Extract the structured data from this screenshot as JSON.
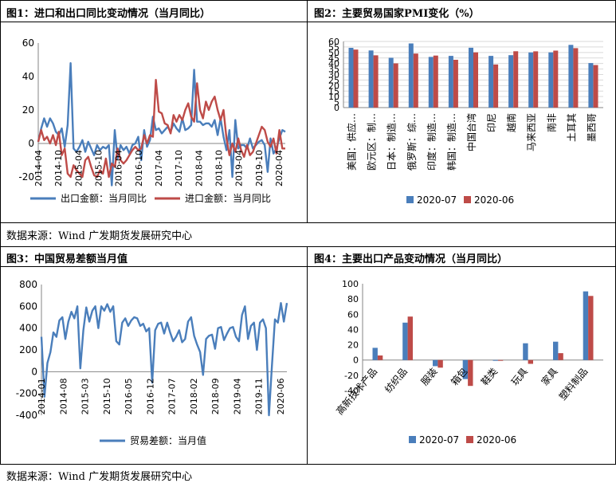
{
  "panels": {
    "p1": {
      "title": "图1：进口和出口同比变动情况（当月同比）"
    },
    "p2": {
      "title": "图2：主要贸易国家PMI变化（%）"
    },
    "p3": {
      "title": "图3：中国贸易差额当月值"
    },
    "p4": {
      "title": "图4：主要出口产品变动情况（当月同比）"
    }
  },
  "sources": {
    "top": "数据来源：Wind 广发期货发展研究中心",
    "bottom": "数据来源：Wind 广发期货发展研究中心"
  },
  "colors": {
    "blue": "#4a7ebb",
    "red": "#be4b48",
    "axis": "#868686",
    "grid": "#d9d9d9"
  },
  "chart_data": [
    {
      "id": "chart1",
      "type": "line",
      "title": "",
      "xlabel": "",
      "ylabel": "",
      "ylim": [
        -20,
        60
      ],
      "yticks": [
        -20,
        0,
        20,
        40,
        60
      ],
      "x_tick_labels": [
        "2014-04",
        "2014-10",
        "2015-04",
        "2015-10",
        "2016-04",
        "2016-10",
        "2017-04",
        "2017-10",
        "2018-04",
        "2018-10",
        "2019-04",
        "2019-10",
        "2020-04"
      ],
      "grid": false,
      "legend": "bottom",
      "series": [
        {
          "name": "出口金额：当月同比",
          "color": "blue",
          "values": [
            1,
            9,
            15,
            10,
            15,
            12,
            7,
            5,
            9,
            -2,
            11,
            48,
            -3,
            -5,
            -2,
            2,
            -5,
            1,
            -3,
            -7,
            -1,
            -4,
            -2,
            -3,
            -1,
            -25,
            8,
            -9,
            -1,
            -4,
            -2,
            -6,
            -1,
            0,
            4,
            -10,
            8,
            -2,
            2,
            16,
            8,
            9,
            6,
            8,
            10,
            7,
            12,
            9,
            7,
            15,
            8,
            9,
            11,
            44,
            13,
            13,
            11,
            12,
            12,
            10,
            14,
            5,
            15,
            4,
            -4,
            8,
            -20,
            14,
            -3,
            -1,
            -1,
            -3,
            3,
            -3,
            -1,
            1,
            2,
            -1,
            -17,
            3,
            -6,
            -3,
            3,
            8,
            7
          ]
        },
        {
          "name": "进口金额：当月同比",
          "color": "red",
          "values": [
            1,
            8,
            2,
            4,
            0,
            5,
            -1,
            7,
            -7,
            -3,
            -18,
            -20,
            -13,
            -16,
            -18,
            -20,
            -10,
            -8,
            -14,
            -19,
            -20,
            -16,
            -18,
            -9,
            -20,
            -12,
            -14,
            -3,
            -10,
            -12,
            -10,
            -7,
            -4,
            -2,
            -4,
            -3,
            5,
            0,
            5,
            4,
            38,
            19,
            18,
            12,
            11,
            6,
            17,
            13,
            17,
            14,
            20,
            24,
            16,
            13,
            36,
            20,
            15,
            25,
            20,
            25,
            28,
            20,
            14,
            20,
            3,
            -7,
            0,
            -5,
            3,
            -4,
            -8,
            -1,
            -7,
            -5,
            0,
            5,
            10,
            8,
            1,
            -2,
            3,
            -6,
            8,
            -3,
            -3
          ]
        }
      ]
    },
    {
      "id": "chart2",
      "type": "bar",
      "title": "",
      "xlabel": "",
      "ylabel": "",
      "ylim": [
        0,
        60
      ],
      "yticks": [
        0,
        5,
        10,
        15,
        20,
        25,
        30,
        35,
        40,
        45,
        50,
        55,
        60
      ],
      "categories": [
        "美国：供应…",
        "欧元区：制…",
        "日本：制造…",
        "俄罗斯：综…",
        "印度：制造…",
        "韩国：制造…",
        "中国台湾",
        "印尼",
        "越南",
        "马来西亚",
        "南非",
        "土耳其",
        "墨西哥"
      ],
      "legend": "bottom",
      "series": [
        {
          "name": "2020-07",
          "color": "blue",
          "values": [
            54.2,
            51.8,
            45.2,
            58.2,
            46.0,
            46.9,
            54.3,
            46.9,
            47.6,
            50.0,
            50.1,
            56.9,
            40.4
          ]
        },
        {
          "name": "2020-06",
          "color": "red",
          "values": [
            52.6,
            47.4,
            40.1,
            49.0,
            47.2,
            43.4,
            50.1,
            39.1,
            51.1,
            51.0,
            51.7,
            53.9,
            38.6
          ]
        }
      ]
    },
    {
      "id": "chart3",
      "type": "line",
      "title": "",
      "xlabel": "",
      "ylabel": "",
      "ylim": [
        -400,
        800
      ],
      "yticks": [
        -400,
        -200,
        0,
        200,
        400,
        600,
        800
      ],
      "x_tick_labels": [
        "2014-01",
        "2014-08",
        "2015-03",
        "2015-10",
        "2016-05",
        "2016-12",
        "2017-07",
        "2018-02",
        "2018-09",
        "2019-04",
        "2019-11",
        "2020-06"
      ],
      "grid": false,
      "legend": "bottom",
      "series": [
        {
          "name": "贸易差额：当月值",
          "color": "blue",
          "values": [
            320,
            -230,
            80,
            180,
            360,
            320,
            470,
            500,
            300,
            460,
            550,
            490,
            600,
            30,
            380,
            590,
            460,
            560,
            600,
            400,
            600,
            560,
            620,
            550,
            600,
            280,
            250,
            450,
            490,
            420,
            470,
            500,
            490,
            420,
            440,
            370,
            400,
            -100,
            380,
            440,
            450,
            350,
            450,
            360,
            280,
            320,
            380,
            270,
            300,
            460,
            500,
            330,
            250,
            180,
            -30,
            300,
            330,
            340,
            210,
            400,
            410,
            290,
            350,
            400,
            410,
            320,
            280,
            520,
            600,
            300,
            420,
            450,
            200,
            450,
            480,
            400,
            -400,
            50,
            480,
            450,
            630,
            460,
            630
          ]
        }
      ]
    },
    {
      "id": "chart4",
      "type": "bar",
      "title": "",
      "xlabel": "",
      "ylabel": "",
      "ylim": [
        -40,
        100
      ],
      "yticks": [
        -40,
        -20,
        0,
        20,
        40,
        60,
        80,
        100
      ],
      "categories": [
        "高新技术产品",
        "纺织品",
        "服装",
        "箱包",
        "鞋类",
        "玩具",
        "家具",
        "塑料制品"
      ],
      "legend": "bottom",
      "series": [
        {
          "name": "2020-07",
          "color": "blue",
          "values": [
            16,
            49,
            -8,
            -25,
            -1,
            22,
            24,
            90
          ]
        },
        {
          "name": "2020-06",
          "color": "red",
          "values": [
            6,
            57,
            -10,
            -34,
            -1,
            -5,
            9,
            84
          ]
        }
      ]
    }
  ]
}
